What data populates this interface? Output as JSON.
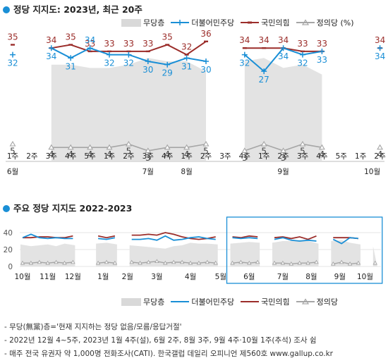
{
  "titles": {
    "top": "정당 지지도: 2023년, 최근 20주",
    "bottom": "주요 정당 지지도 2022-2023"
  },
  "legend": {
    "none": "무당층",
    "dpk": "더불어민주당",
    "ppp": "국민의힘",
    "justice": "정의당 (%)",
    "justice_plain": "정의당"
  },
  "colors": {
    "dpk": "#1a8fd6",
    "ppp": "#9b2d2a",
    "justice": "#a6a6a6",
    "none": "#e3e3e3",
    "accent": "#1a8fd6"
  },
  "notes": [
    "- 무당(無黨)층='현재 지지하는 정당 없음/모름/응답거절'",
    "- 2022년 12월 4~5주, 2023년 1월 4주(설), 6월 2주, 8월 3주, 9월 4주·10월 1주(추석) 조사 쉼",
    "- 매주 전국 유권자 약 1,000명 전화조사(CATI). 한국갤럽 데일리 오피니언 제560호 www.gallup.co.kr"
  ],
  "chart_data": [
    {
      "type": "line",
      "title": "정당 지지도: 2023년, 최근 20주",
      "week_labels": [
        "1주",
        "2주",
        "3주",
        "4주",
        "5주",
        "1주",
        "2주",
        "3주",
        "4주",
        "1주",
        "2주",
        "3주",
        "4주",
        "1주",
        "2주",
        "3주",
        "4주",
        "5주",
        "1주",
        "2주"
      ],
      "month_labels": [
        "6월",
        "7월",
        "8월",
        "9월",
        "10월"
      ],
      "series": [
        {
          "name": "더불어민주당",
          "values": [
            32,
            null,
            34,
            31,
            34,
            32,
            32,
            30,
            29,
            31,
            30,
            null,
            32,
            27,
            34,
            32,
            33,
            null,
            null,
            34
          ]
        },
        {
          "name": "국민의힘",
          "values": [
            35,
            null,
            34,
            35,
            33,
            33,
            33,
            33,
            35,
            32,
            36,
            null,
            34,
            34,
            34,
            33,
            33,
            null,
            null,
            34
          ]
        },
        {
          "name": "정의당",
          "values": [
            5,
            null,
            4,
            4,
            4,
            4,
            5,
            3,
            4,
            4,
            5,
            null,
            3,
            5,
            3,
            5,
            4,
            null,
            null,
            4
          ]
        },
        {
          "name": "무당층",
          "values": [
            null,
            null,
            29,
            29,
            28,
            28,
            29,
            31,
            30,
            30,
            27,
            null,
            30,
            31,
            28,
            29,
            26,
            null,
            null,
            24
          ]
        }
      ]
    },
    {
      "type": "line",
      "title": "주요 정당 지지도 2022-2023",
      "y_ticks": [
        0,
        20,
        40
      ],
      "month_labels": [
        "10월",
        "11월",
        "12월",
        "1월",
        "2월",
        "3월",
        "4월",
        "5월",
        "6월",
        "7월",
        "8월",
        "9월",
        "10월"
      ],
      "series": [
        {
          "name": "더불어민주당",
          "values": [
            34,
            38,
            34,
            33,
            34,
            33,
            33,
            null,
            null,
            33,
            32,
            34,
            null,
            32,
            32,
            33,
            31,
            36,
            31,
            32,
            34,
            35,
            33,
            32,
            null,
            34,
            33,
            34,
            33,
            null,
            32,
            34,
            31,
            30,
            31,
            30,
            null,
            32,
            27,
            34,
            33,
            null,
            34
          ]
        },
        {
          "name": "국민의힘",
          "values": [
            34,
            34,
            35,
            35,
            34,
            34,
            36,
            null,
            null,
            36,
            34,
            36,
            null,
            37,
            37,
            38,
            37,
            40,
            38,
            35,
            33,
            32,
            33,
            35,
            null,
            35,
            34,
            36,
            35,
            null,
            34,
            35,
            33,
            35,
            32,
            36,
            null,
            34,
            34,
            34,
            33,
            null,
            34
          ]
        },
        {
          "name": "정의당",
          "values": [
            4,
            4,
            5,
            4,
            5,
            4,
            5,
            null,
            null,
            4,
            5,
            4,
            null,
            5,
            4,
            5,
            6,
            4,
            5,
            5,
            4,
            4,
            5,
            4,
            null,
            4,
            5,
            4,
            5,
            null,
            4,
            4,
            3,
            4,
            4,
            5,
            null,
            3,
            5,
            3,
            4,
            null,
            4
          ]
        },
        {
          "name": "무당층",
          "values": [
            26,
            24,
            25,
            26,
            24,
            27,
            25,
            null,
            null,
            27,
            28,
            26,
            null,
            25,
            24,
            23,
            22,
            21,
            24,
            25,
            28,
            27,
            27,
            26,
            null,
            27,
            28,
            29,
            28,
            null,
            28,
            30,
            30,
            31,
            30,
            27,
            null,
            30,
            31,
            28,
            26,
            null,
            24
          ]
        }
      ]
    }
  ]
}
